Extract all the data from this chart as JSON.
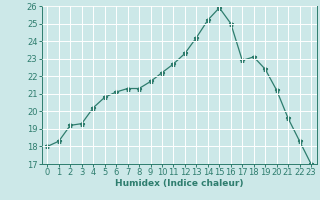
{
  "x": [
    0,
    1,
    2,
    3,
    4,
    5,
    6,
    7,
    8,
    9,
    10,
    11,
    12,
    13,
    14,
    15,
    16,
    17,
    18,
    19,
    20,
    21,
    22,
    23
  ],
  "y": [
    18,
    18.3,
    19.2,
    19.3,
    20.2,
    20.8,
    21.1,
    21.3,
    21.3,
    21.7,
    22.2,
    22.7,
    23.3,
    24.2,
    25.2,
    25.9,
    25.0,
    22.9,
    23.1,
    22.4,
    21.2,
    19.6,
    18.3,
    17.0
  ],
  "xlabel": "Humidex (Indice chaleur)",
  "ylim": [
    17,
    26
  ],
  "xlim": [
    -0.5,
    23.5
  ],
  "yticks": [
    17,
    18,
    19,
    20,
    21,
    22,
    23,
    24,
    25,
    26
  ],
  "xticks": [
    0,
    1,
    2,
    3,
    4,
    5,
    6,
    7,
    8,
    9,
    10,
    11,
    12,
    13,
    14,
    15,
    16,
    17,
    18,
    19,
    20,
    21,
    22,
    23
  ],
  "line_color": "#2e7d6e",
  "marker": "*",
  "marker_size": 3.5,
  "bg_color": "#cce8e8",
  "grid_color": "#ffffff",
  "label_fontsize": 6.5,
  "tick_fontsize": 6.0
}
